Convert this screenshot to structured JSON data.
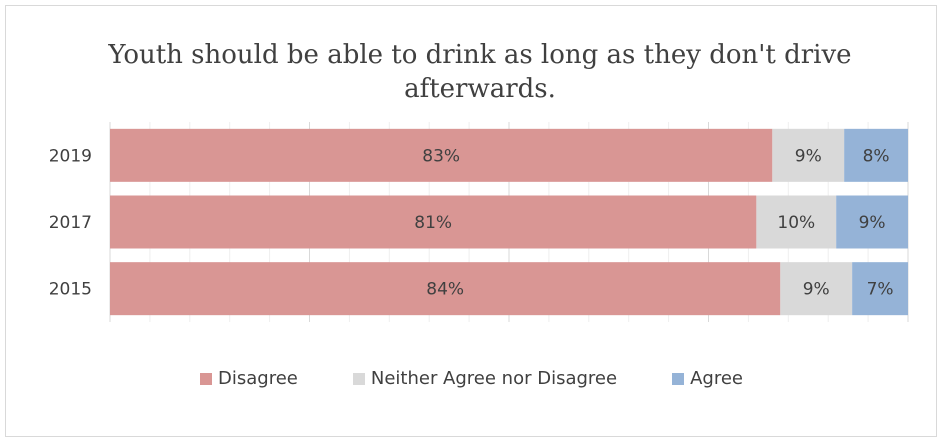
{
  "chart_data": {
    "type": "bar",
    "orientation": "horizontal",
    "stacked": true,
    "title": "Youth should be able to drink as long as they don't drive afterwards.",
    "categories": [
      "2019",
      "2017",
      "2015"
    ],
    "series": [
      {
        "name": "Disagree",
        "color": "#d99694",
        "values": [
          83,
          81,
          84
        ],
        "labels": [
          "83%",
          "81%",
          "84%"
        ]
      },
      {
        "name": "Neither Agree nor Disagree",
        "color": "#d9d9d9",
        "values": [
          9,
          10,
          9
        ],
        "labels": [
          "9%",
          "10%",
          "9%"
        ]
      },
      {
        "name": "Agree",
        "color": "#95b3d7",
        "values": [
          8,
          9,
          7
        ],
        "labels": [
          "8%",
          "9%",
          "7%"
        ]
      }
    ],
    "xlim": [
      0,
      100
    ],
    "legend": "bottom",
    "grid": true
  }
}
